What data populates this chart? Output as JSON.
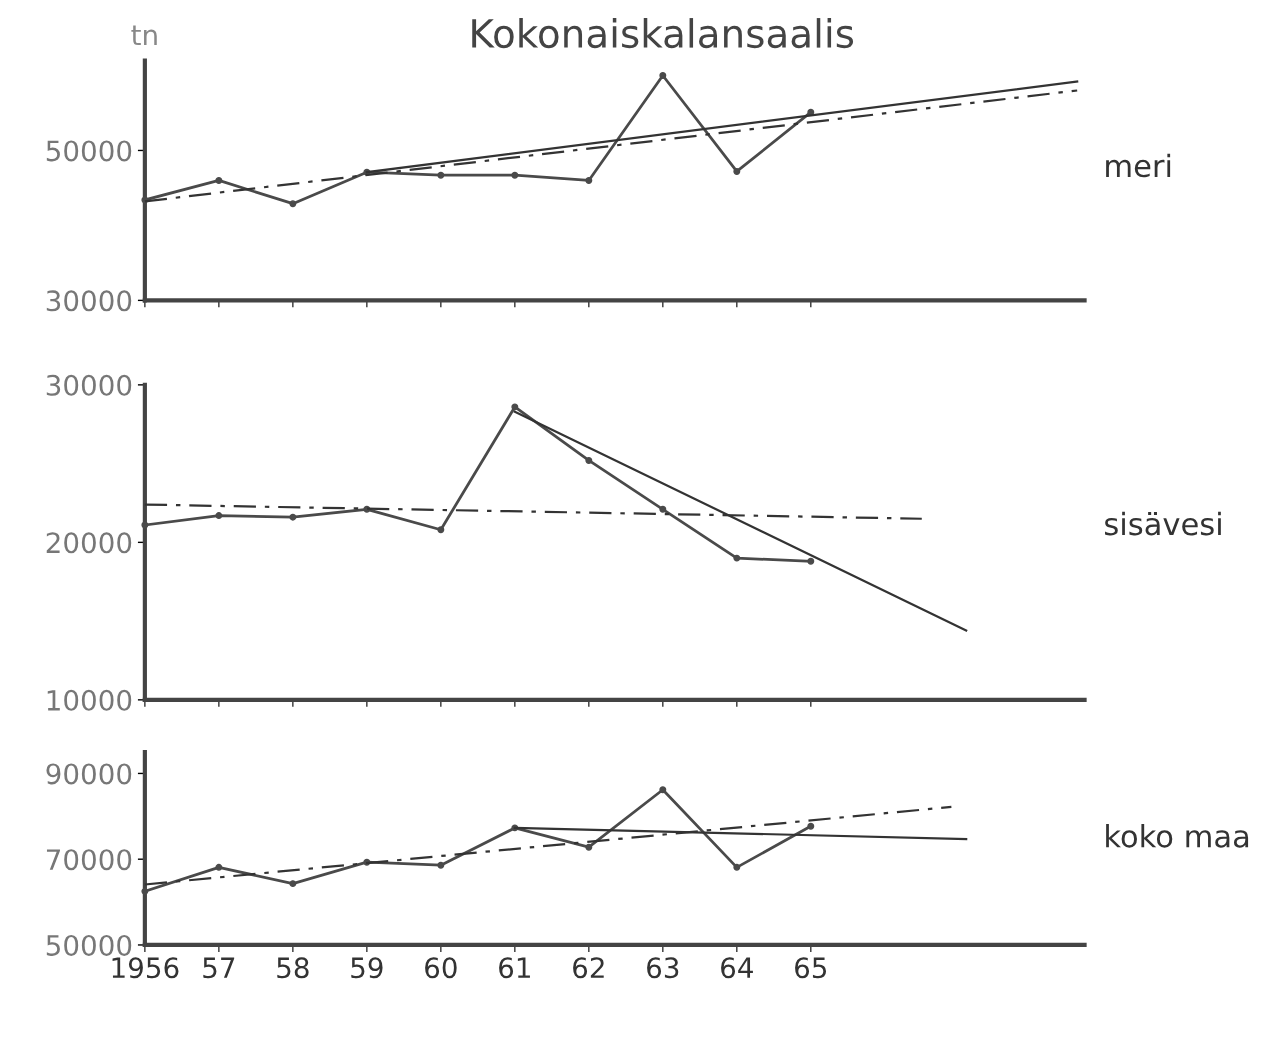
{
  "chart_data": [
    {
      "type": "line",
      "title": "Kokonaiskalansaalis",
      "ylabel": "tn",
      "annotations": [
        "meri"
      ],
      "x": [
        1956,
        1957,
        1958,
        1959,
        1960,
        1961,
        1962,
        1963,
        1964,
        1965
      ],
      "series": [
        {
          "color": "#4a4a4a",
          "marker": "circle",
          "line_style": "solid",
          "values": [
            43400,
            46000,
            42900,
            47100,
            46700,
            46700,
            46000,
            60000,
            47200,
            55100
          ]
        },
        {
          "color": "#333333",
          "marker": "none",
          "line_style": "solid",
          "x": [
            1959,
            1968.6
          ],
          "values": [
            47100,
            59200
          ]
        },
        {
          "color": "#333333",
          "marker": "none",
          "line_style": "dashed",
          "x": [
            1956,
            1968.6
          ],
          "values": [
            43200,
            58000
          ]
        }
      ],
      "xlim": [
        1956,
        1968.7
      ],
      "xticks": [
        {
          "value": 1956,
          "label": null
        },
        {
          "value": 1957,
          "label": null
        },
        {
          "value": 1958,
          "label": null
        },
        {
          "value": 1959,
          "label": null
        },
        {
          "value": 1960,
          "label": null
        },
        {
          "value": 1961,
          "label": null
        },
        {
          "value": 1962,
          "label": null
        },
        {
          "value": 1963,
          "label": null
        },
        {
          "value": 1964,
          "label": null
        },
        {
          "value": 1965,
          "label": null
        }
      ],
      "ylim": [
        30000,
        62000
      ],
      "yticks": [
        30000,
        50000
      ],
      "tick_labels": "y",
      "grid": false,
      "legend": false
    },
    {
      "type": "line",
      "annotations": [
        "sisävesi"
      ],
      "x": [
        1956,
        1957,
        1958,
        1959,
        1960,
        1961,
        1962,
        1963,
        1964,
        1965
      ],
      "series": [
        {
          "color": "#4a4a4a",
          "marker": "circle",
          "line_style": "solid",
          "values": [
            21100,
            21700,
            21600,
            22100,
            20800,
            28600,
            25200,
            22100,
            19000,
            18800
          ]
        },
        {
          "color": "#333333",
          "marker": "none",
          "line_style": "solid",
          "x": [
            1961,
            1967.1
          ],
          "values": [
            28300,
            14400
          ]
        },
        {
          "color": "#333333",
          "marker": "none",
          "line_style": "dashed",
          "x": [
            1956,
            1966.5
          ],
          "values": [
            22400,
            21500
          ]
        }
      ],
      "xlim": [
        1956,
        1968.7
      ],
      "xticks": [
        {
          "value": 1956,
          "label": null
        },
        {
          "value": 1957,
          "label": null
        },
        {
          "value": 1958,
          "label": null
        },
        {
          "value": 1959,
          "label": null
        },
        {
          "value": 1960,
          "label": null
        },
        {
          "value": 1961,
          "label": null
        },
        {
          "value": 1962,
          "label": null
        },
        {
          "value": 1963,
          "label": null
        },
        {
          "value": 1964,
          "label": null
        },
        {
          "value": 1965,
          "label": null
        }
      ],
      "ylim": [
        10000,
        30000
      ],
      "yticks": [
        10000,
        20000,
        30000
      ],
      "tick_labels": "y",
      "grid": false,
      "legend": false
    },
    {
      "type": "line",
      "annotations": [
        "koko maa"
      ],
      "x": [
        1956,
        1957,
        1958,
        1959,
        1960,
        1961,
        1962,
        1963,
        1964,
        1965
      ],
      "series": [
        {
          "color": "#4a4a4a",
          "marker": "circle",
          "line_style": "solid",
          "values": [
            62500,
            68100,
            64300,
            69300,
            68600,
            77300,
            72800,
            86200,
            68100,
            77700
          ]
        },
        {
          "color": "#333333",
          "marker": "none",
          "line_style": "solid",
          "x": [
            1961,
            1967.1
          ],
          "values": [
            77300,
            74700
          ]
        },
        {
          "color": "#333333",
          "marker": "none",
          "line_style": "dashed",
          "x": [
            1956,
            1966.9
          ],
          "values": [
            64100,
            82200
          ]
        }
      ],
      "xlim": [
        1956,
        1968.7
      ],
      "xticks": [
        {
          "value": 1956,
          "label": "1956"
        },
        {
          "value": 1957,
          "label": "57"
        },
        {
          "value": 1958,
          "label": "58"
        },
        {
          "value": 1959,
          "label": "59"
        },
        {
          "value": 1960,
          "label": "60"
        },
        {
          "value": 1961,
          "label": "61"
        },
        {
          "value": 1962,
          "label": "62"
        },
        {
          "value": 1963,
          "label": "63"
        },
        {
          "value": 1964,
          "label": "64"
        },
        {
          "value": 1965,
          "label": "65"
        }
      ],
      "ylim": [
        50000,
        95000
      ],
      "yticks": [
        50000,
        70000,
        90000
      ],
      "grid": false,
      "legend": false
    }
  ]
}
